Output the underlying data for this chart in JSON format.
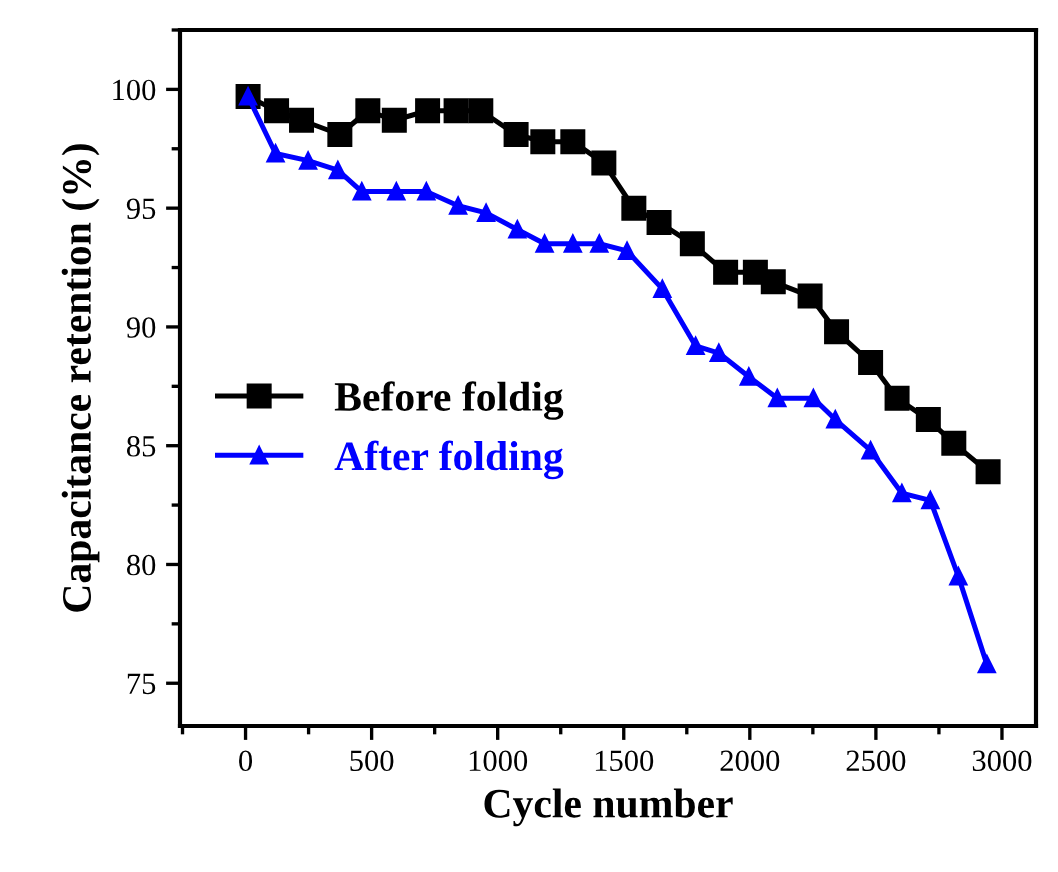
{
  "chart_data": {
    "type": "line",
    "xlabel": "Cycle number",
    "ylabel": "Capacitance retention (%)",
    "xlim": [
      -260,
      3135
    ],
    "xticks": [
      0,
      500,
      1000,
      1500,
      2000,
      2500,
      3000
    ],
    "ylim": [
      73.2,
      102.5
    ],
    "yticks": [
      75,
      80,
      85,
      90,
      95,
      100
    ],
    "grid": false,
    "legend": "left",
    "series": [
      {
        "name": "Before foldig",
        "color": "#000000",
        "marker": "square",
        "x": [
          10,
          123,
          222,
          374,
          485,
          590,
          722,
          835,
          933,
          1073,
          1179,
          1298,
          1421,
          1540,
          1640,
          1772,
          1904,
          2022,
          2093,
          2239,
          2344,
          2479,
          2584,
          2708,
          2809,
          2945
        ],
        "values": [
          99.7,
          99.1,
          98.7,
          98.1,
          99.1,
          98.7,
          99.1,
          99.1,
          99.1,
          98.1,
          97.8,
          97.8,
          96.9,
          95.0,
          94.4,
          93.5,
          92.3,
          92.3,
          91.9,
          91.3,
          89.8,
          88.5,
          87.0,
          86.1,
          85.1,
          83.9
        ]
      },
      {
        "name": "After folding",
        "color": "#0000ff",
        "marker": "triangle",
        "x": [
          10,
          119,
          248,
          366,
          461,
          598,
          717,
          843,
          954,
          1078,
          1186,
          1298,
          1403,
          1513,
          1653,
          1785,
          1877,
          1996,
          2109,
          2252,
          2339,
          2479,
          2603,
          2716,
          2827,
          2940
        ],
        "values": [
          99.7,
          97.3,
          97.0,
          96.6,
          95.7,
          95.7,
          95.7,
          95.1,
          94.8,
          94.1,
          93.5,
          93.5,
          93.5,
          93.2,
          91.6,
          89.2,
          88.9,
          87.9,
          87.0,
          87.0,
          86.1,
          84.8,
          83.0,
          82.7,
          79.5,
          75.8
        ]
      }
    ]
  }
}
